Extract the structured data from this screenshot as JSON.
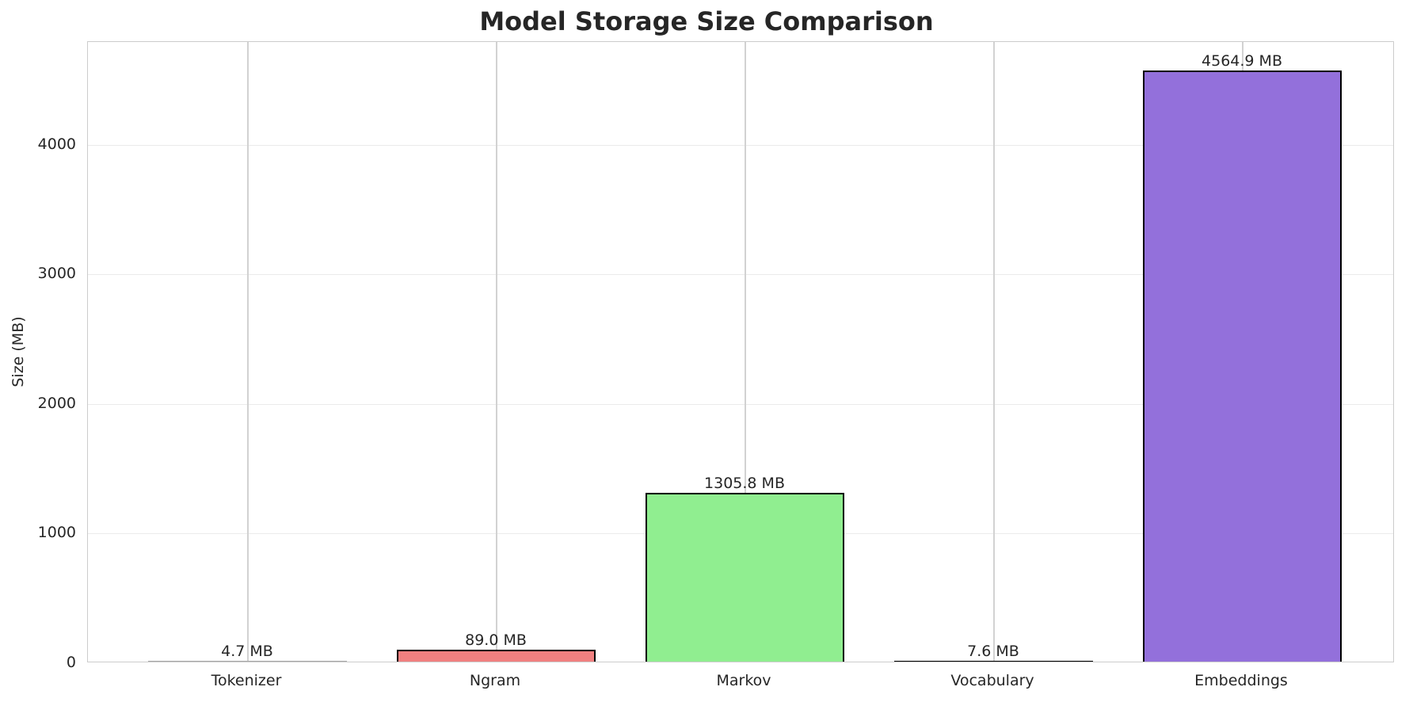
{
  "chart_data": {
    "type": "bar",
    "title": "Model Storage Size Comparison",
    "xlabel": "",
    "ylabel": "Size (MB)",
    "categories": [
      "Tokenizer",
      "Ngram",
      "Markov",
      "Vocabulary",
      "Embeddings"
    ],
    "values": [
      4.7,
      89.0,
      1305.8,
      7.6,
      4564.9
    ],
    "value_labels": [
      "4.7 MB",
      "89.0 MB",
      "1305.8 MB",
      "7.6 MB",
      "4564.9 MB"
    ],
    "colors": [
      "#87ceeb",
      "#f08080",
      "#90ee90",
      "#ffd700",
      "#9370db"
    ],
    "ylim": [
      0,
      4795
    ],
    "yticks": [
      0,
      1000,
      2000,
      3000,
      4000
    ],
    "ytick_labels": [
      "0",
      "1000",
      "2000",
      "3000",
      "4000"
    ],
    "grid": true,
    "legend": null
  }
}
